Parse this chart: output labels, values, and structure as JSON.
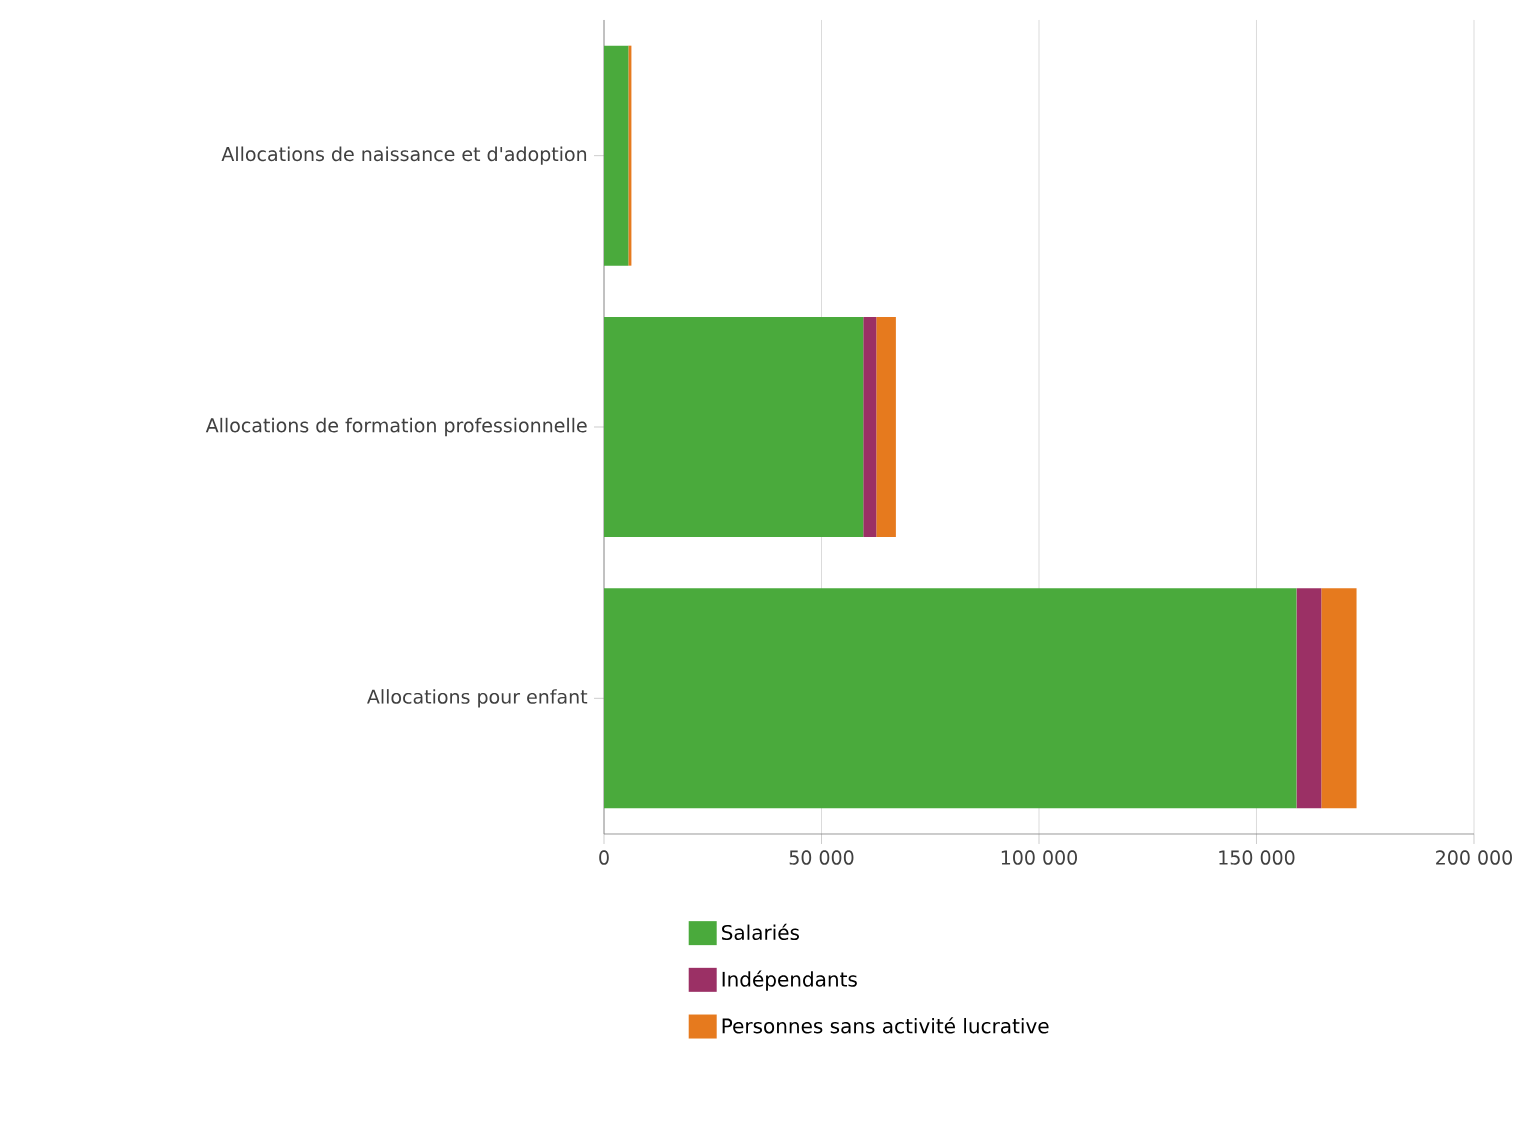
{
  "chart_data": {
    "type": "bar",
    "orientation": "horizontal",
    "stacked": true,
    "categories": [
      "Allocations de naissance et d'adoption",
      "Allocations de formation professionnelle",
      "Allocations pour enfant"
    ],
    "series": [
      {
        "name": "Salariés",
        "color": "#4aaa3c",
        "values": [
          5600,
          59600,
          159200
        ]
      },
      {
        "name": "Indépendants",
        "color": "#9b3065",
        "values": [
          0,
          3000,
          5700
        ]
      },
      {
        "name": "Personnes sans activité lucrative",
        "color": "#e67a1e",
        "values": [
          700,
          4500,
          8100
        ]
      }
    ],
    "xlim": [
      0,
      200000
    ],
    "xticks": [
      {
        "value": 0,
        "label": "0"
      },
      {
        "value": 50000,
        "label": "50 000"
      },
      {
        "value": 100000,
        "label": "100 000"
      },
      {
        "value": 150000,
        "label": "150 000"
      },
      {
        "value": 200000,
        "label": "200 000"
      }
    ],
    "grid": "x",
    "legend": "bottom"
  }
}
